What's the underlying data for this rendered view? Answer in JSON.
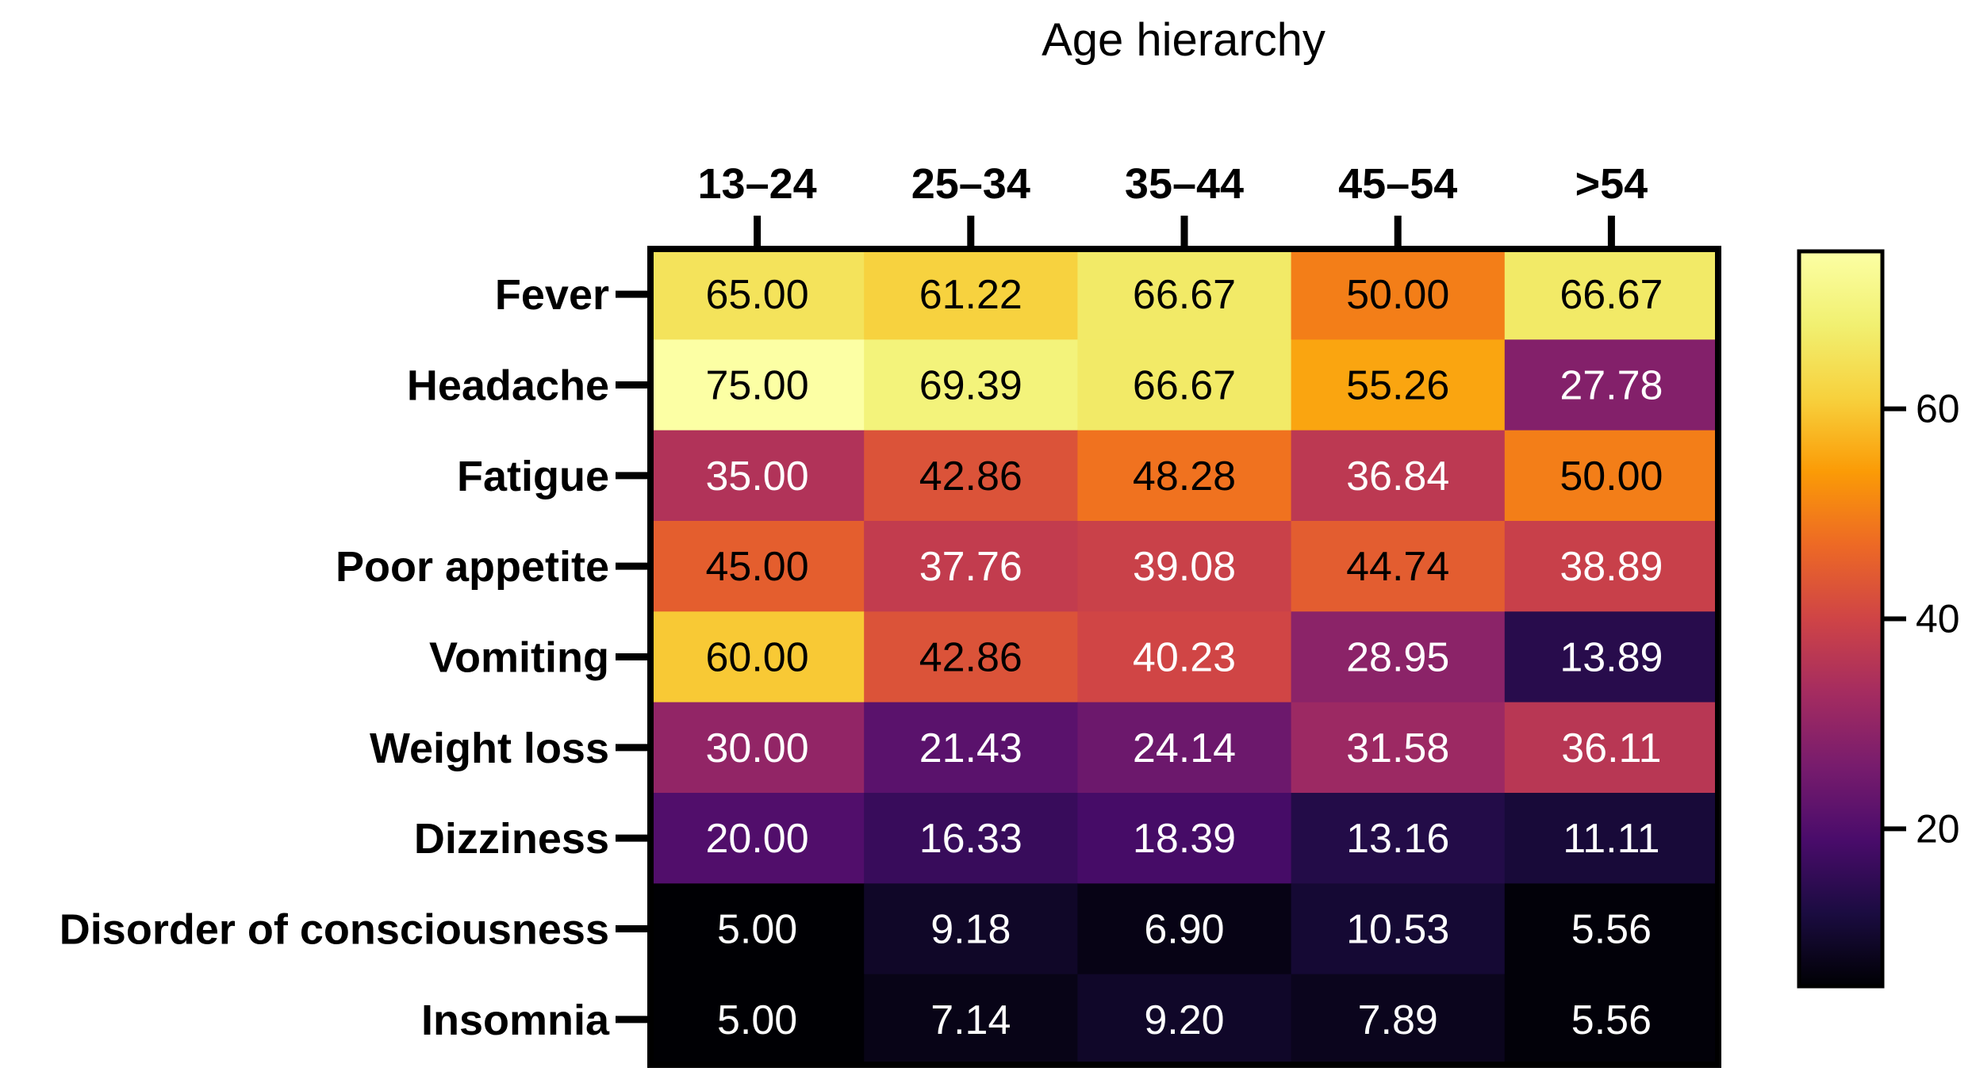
{
  "chart_data": {
    "type": "heatmap",
    "title": "Age hierarchy",
    "columns": [
      "13–24",
      "25–34",
      "35–44",
      "45–54",
      ">54"
    ],
    "rows": [
      "Fever",
      "Headache",
      "Fatigue",
      "Poor appetite",
      "Vomiting",
      "Weight loss",
      "Dizziness",
      "Disorder of consciousness",
      "Insomnia"
    ],
    "values": [
      [
        65.0,
        61.22,
        66.67,
        50.0,
        66.67
      ],
      [
        75.0,
        69.39,
        66.67,
        55.26,
        27.78
      ],
      [
        35.0,
        42.86,
        48.28,
        36.84,
        50.0
      ],
      [
        45.0,
        37.76,
        39.08,
        44.74,
        38.89
      ],
      [
        60.0,
        42.86,
        40.23,
        28.95,
        13.89
      ],
      [
        30.0,
        21.43,
        24.14,
        31.58,
        36.11
      ],
      [
        20.0,
        16.33,
        18.39,
        13.16,
        11.11
      ],
      [
        5.0,
        9.18,
        6.9,
        10.53,
        5.56
      ],
      [
        5.0,
        7.14,
        9.2,
        7.89,
        5.56
      ]
    ],
    "value_labels": [
      [
        "65.00",
        "61.22",
        "66.67",
        "50.00",
        "66.67"
      ],
      [
        "75.00",
        "69.39",
        "66.67",
        "55.26",
        "27.78"
      ],
      [
        "35.00",
        "42.86",
        "48.28",
        "36.84",
        "50.00"
      ],
      [
        "45.00",
        "37.76",
        "39.08",
        "44.74",
        "38.89"
      ],
      [
        "60.00",
        "42.86",
        "40.23",
        "28.95",
        "13.89"
      ],
      [
        "30.00",
        "21.43",
        "24.14",
        "31.58",
        "36.11"
      ],
      [
        "20.00",
        "16.33",
        "18.39",
        "13.16",
        "11.11"
      ],
      [
        "5.00",
        "9.18",
        "6.90",
        "10.53",
        "5.56"
      ],
      [
        "5.00",
        "7.14",
        "9.20",
        "7.89",
        "5.56"
      ]
    ],
    "colorbar": {
      "colormap": "inferno",
      "range": [
        5,
        75
      ],
      "ticks": [
        20,
        40,
        60
      ],
      "tick_labels": [
        "20",
        "40",
        "60"
      ],
      "position": "right"
    }
  }
}
